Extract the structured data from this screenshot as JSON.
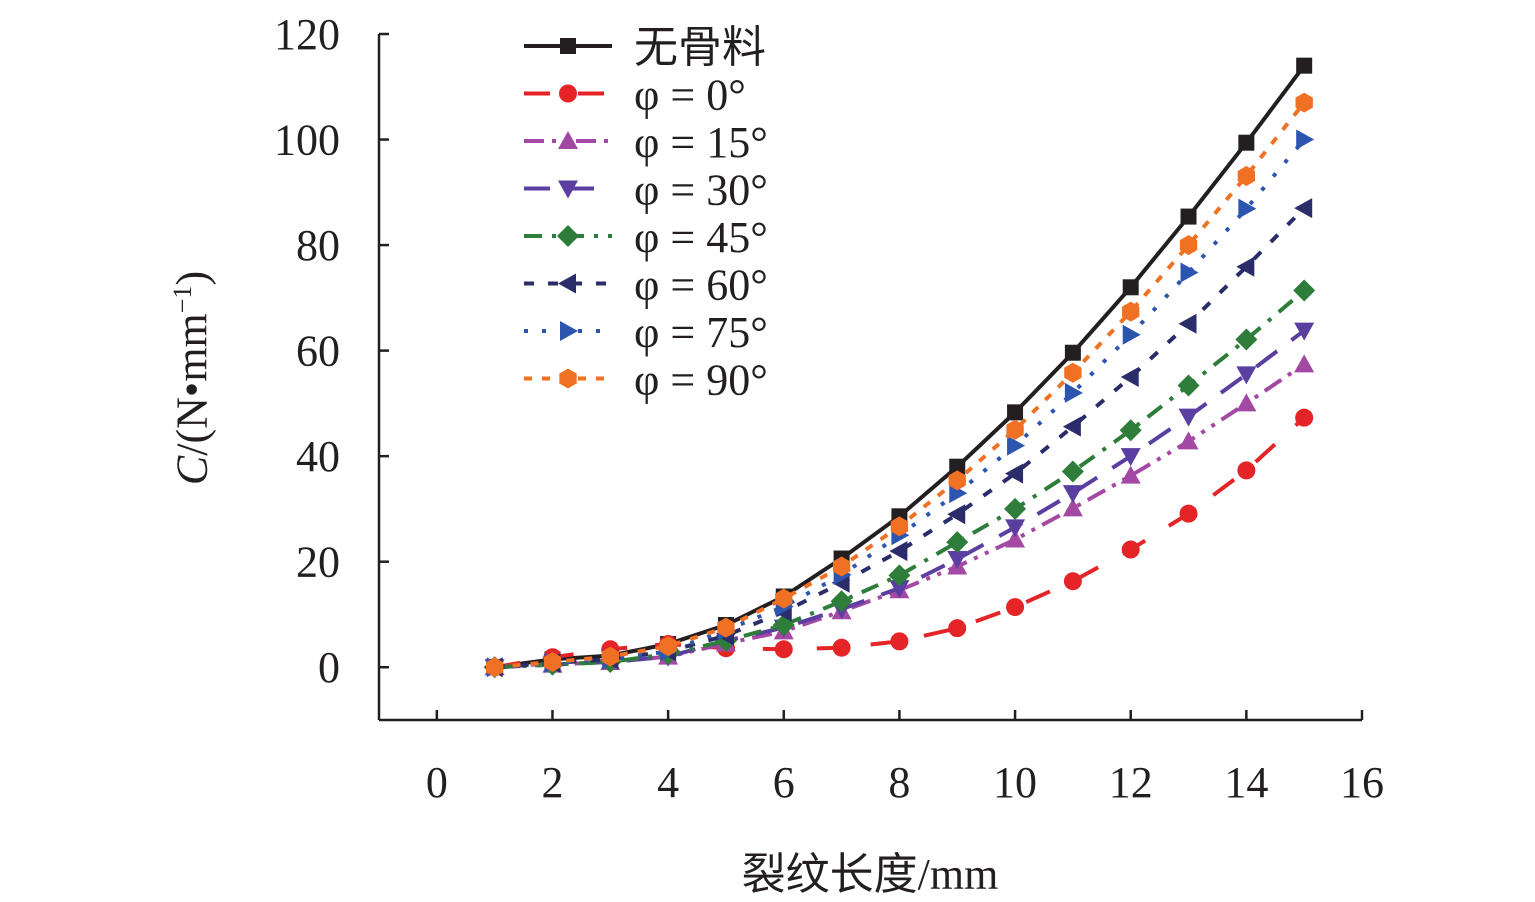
{
  "chart_data": {
    "type": "line",
    "title": "",
    "xlabel": "裂纹长度/mm",
    "ylabel": {
      "var": "C",
      "rest": "/(N•mm",
      "exp": "−1",
      "close": ")"
    },
    "xlim": [
      -1,
      16
    ],
    "ylim": [
      -10,
      120
    ],
    "xticks": [
      0,
      2,
      4,
      6,
      8,
      10,
      12,
      14,
      16
    ],
    "yticks": [
      0,
      20,
      40,
      60,
      80,
      100,
      120
    ],
    "grid": false,
    "legend_position": "top-left",
    "x": [
      1,
      2,
      3,
      4,
      5,
      6,
      7,
      8,
      9,
      10,
      11,
      12,
      13,
      14,
      15
    ],
    "series": [
      {
        "name": "无骨料",
        "color": "#231f20",
        "marker": "square",
        "dash": "",
        "values": [
          0,
          1.5,
          2.2,
          4.4,
          8,
          13.4,
          20.6,
          28.6,
          38,
          48.3,
          59.6,
          72,
          85.4,
          99.4,
          114
        ]
      },
      {
        "name": "φ = 0°",
        "color": "#e52428",
        "marker": "circle",
        "dash": "26 28",
        "values": [
          0,
          1.9,
          3.4,
          4.4,
          3.6,
          3.4,
          3.7,
          4.9,
          7.4,
          11.4,
          16.3,
          22.3,
          29.1,
          37.3,
          47.3
        ]
      },
      {
        "name": "φ = 15°",
        "color": "#a349a4",
        "marker": "triangle-up",
        "dash": "20 8 4 8 4 8",
        "values": [
          0,
          0.5,
          1,
          2,
          4.5,
          6.8,
          10.6,
          14.6,
          19.1,
          24.2,
          30.1,
          36.3,
          42.8,
          50,
          57.4
        ]
      },
      {
        "name": "φ = 30°",
        "color": "#5a3ea0",
        "marker": "triangle-down",
        "dash": "26 18",
        "values": [
          0,
          0.5,
          1,
          2,
          5,
          7.5,
          11,
          15,
          20.5,
          26.5,
          33,
          40,
          47.5,
          55.5,
          63.8
        ]
      },
      {
        "name": "φ = 45°",
        "color": "#2e7d3a",
        "marker": "diamond",
        "dash": "18 10 4 10",
        "values": [
          0,
          0.5,
          1,
          2.5,
          5,
          8,
          12.5,
          17.4,
          23.7,
          30,
          37.1,
          44.9,
          53.4,
          62.1,
          71.4
        ]
      },
      {
        "name": "φ = 60°",
        "color": "#2a2d6a",
        "marker": "triangle-left",
        "dash": "10 14",
        "values": [
          0,
          0.8,
          1.5,
          3,
          6,
          10.5,
          16,
          22,
          29,
          36.7,
          45.6,
          55,
          65.1,
          75.9,
          87
        ]
      },
      {
        "name": "φ = 75°",
        "color": "#2c55b0",
        "marker": "triangle-right",
        "dash": "4 14",
        "values": [
          0,
          0.8,
          1.5,
          3,
          7,
          11.5,
          17.5,
          25,
          33,
          42,
          52,
          63,
          74.8,
          86.9,
          100
        ]
      },
      {
        "name": "φ = 90°",
        "color": "#f07024",
        "marker": "hexagon",
        "dash": "8 10",
        "values": [
          0,
          1,
          2,
          4,
          7.5,
          13,
          19.1,
          26.7,
          35.4,
          45,
          55.8,
          67.4,
          80,
          93.1,
          107
        ]
      }
    ]
  }
}
